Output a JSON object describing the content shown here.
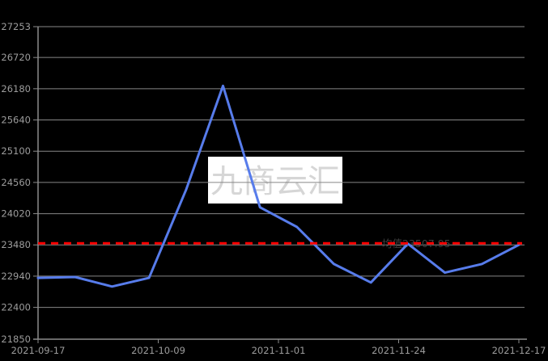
{
  "chart_data": {
    "type": "line",
    "title": "",
    "x": [
      "2021-09-17",
      "2021-09-24",
      "2021-10-01",
      "2021-10-08",
      "2021-10-15",
      "2021-10-22",
      "2021-10-29",
      "2021-11-05",
      "2021-11-12",
      "2021-11-19",
      "2021-11-26",
      "2021-12-03",
      "2021-12-10",
      "2021-12-17"
    ],
    "series": [
      {
        "values": [
          22910,
          22925,
          22760,
          22910,
          24430,
          26230,
          24130,
          23790,
          23150,
          22830,
          23500,
          23000,
          23150,
          23480
        ]
      }
    ],
    "y_ticks": [
      27253,
      26720,
      26180,
      25640,
      25100,
      24560,
      24020,
      23480,
      22940,
      22400,
      21850
    ],
    "x_tick_labels": [
      "2021-09-17",
      "2021-10-09",
      "2021-11-01",
      "2021-11-24",
      "2021-12-17"
    ],
    "ylim": [
      21850,
      27253
    ],
    "grid": true,
    "legend": "none",
    "xlabel": "",
    "ylabel": "",
    "mean_line": {
      "value": 23507.95,
      "label": "均值23507.95"
    },
    "watermark": "九商云汇",
    "colors": {
      "background": "#000000",
      "series_line": "#577ceb",
      "mean_line": "#ff0000",
      "mean_label": "#3f3f3f",
      "grid_line": "#878787",
      "axis_line": "#8c8c8c",
      "tick_label": "#9c9c9c",
      "watermark_bg": "#ffffff",
      "watermark_text": "#d6d6d6"
    }
  }
}
